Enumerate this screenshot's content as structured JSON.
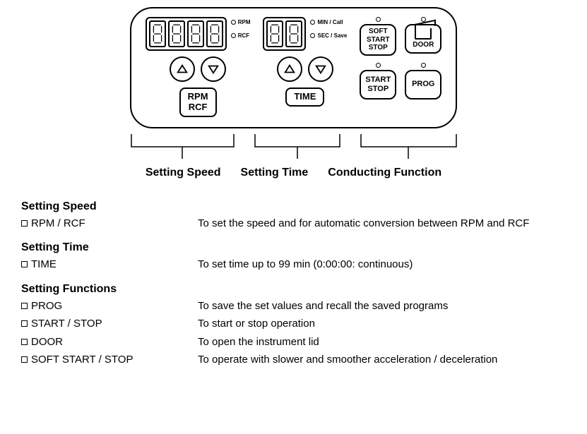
{
  "panel": {
    "stroke": "#000000",
    "background": "#ffffff",
    "speed": {
      "digit_count": 4,
      "indicators": [
        {
          "label": "RPM"
        },
        {
          "label": "RCF"
        }
      ],
      "button_line1": "RPM",
      "button_line2": "RCF"
    },
    "time": {
      "digit_count": 2,
      "indicators": [
        {
          "label": "MIN / Call"
        },
        {
          "label": "SEC / Save"
        }
      ],
      "button": "TIME"
    },
    "functions": {
      "soft": {
        "l1": "SOFT",
        "l2": "START",
        "l3": "STOP"
      },
      "door": {
        "label": "DOOR"
      },
      "startstop": {
        "l1": "START",
        "l2": "STOP"
      },
      "prog": {
        "label": "PROG"
      }
    }
  },
  "section_labels": {
    "a": "Setting Speed",
    "b": "Setting Time",
    "c": "Conducting Function"
  },
  "descriptions": {
    "speed": {
      "heading": "Setting Speed",
      "items": [
        {
          "key": "RPM / RCF",
          "text": "To set the speed and for automatic conversion between RPM and RCF"
        }
      ]
    },
    "time": {
      "heading": "Setting Time",
      "items": [
        {
          "key": "TIME",
          "text": "To set time up to 99 min (0:00:00: continuous)"
        }
      ]
    },
    "functions": {
      "heading": "Setting Functions",
      "items": [
        {
          "key": "PROG",
          "text": "To save the set values and recall the saved programs"
        },
        {
          "key": "START / STOP",
          "text": "To start or stop operation"
        },
        {
          "key": "DOOR",
          "text": "To open the instrument lid"
        },
        {
          "key": "SOFT START / STOP",
          "text": "To operate with slower and smoother acceleration / deceleration"
        }
      ]
    }
  }
}
